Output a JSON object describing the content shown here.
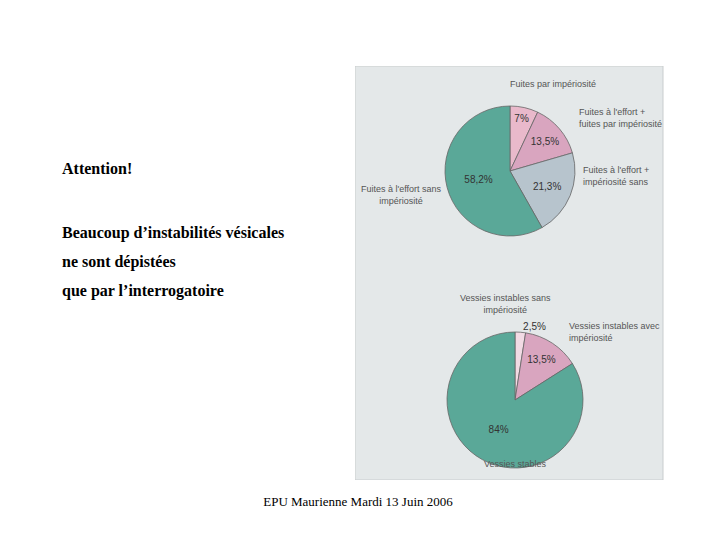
{
  "text": {
    "heading": "Attention!",
    "body": [
      "Beaucoup d’instabilités vésicales",
      "ne sont dépistées",
      "que par l’interrogatoire"
    ],
    "footer": "EPU Maurienne Mardi 13 Juin 2006"
  },
  "chart_data": [
    {
      "type": "pie",
      "categories": [
        "Fuites par impériosité",
        "Fuites à l'effort + fuites par impériosité",
        "Fuites à l'effort + impériosité sans",
        "Fuites à l'effort sans impériosité"
      ],
      "values": [
        7,
        13.5,
        21.3,
        58.2
      ],
      "value_labels": [
        "7%",
        "13,5%",
        "21,3%",
        "58,2%"
      ],
      "colors": [
        "#e9b9cb",
        "#d9a5bf",
        "#b7c4cd",
        "#5aa898"
      ],
      "data_labels": true
    },
    {
      "type": "pie",
      "categories": [
        "Vessies instables sans impériosité",
        "Vessies instables avec impériosité",
        "Vessies stables"
      ],
      "values": [
        2.5,
        13.5,
        84
      ],
      "value_labels": [
        "2,5%",
        "13,5%",
        "84%"
      ],
      "colors": [
        "#f2dbe4",
        "#d9a5bf",
        "#5aa898"
      ],
      "data_labels": true
    }
  ]
}
